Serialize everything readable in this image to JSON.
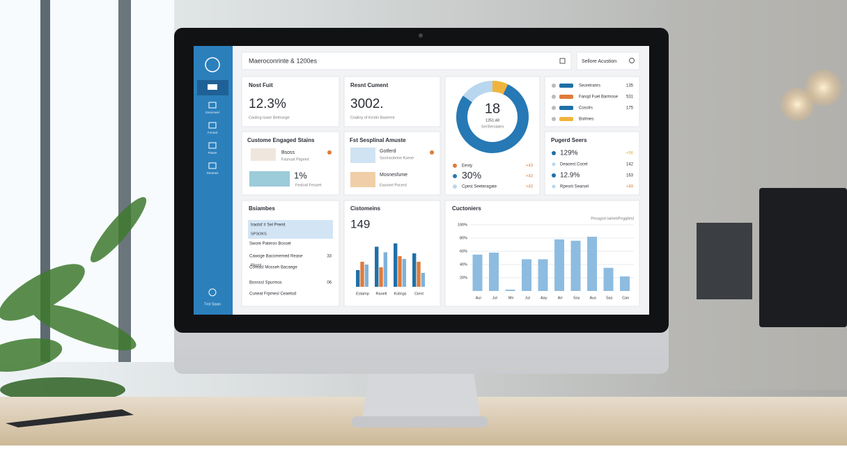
{
  "header": {
    "title": "Maeroconrinte & 1200es",
    "search": "Sellore Acustion"
  },
  "sidebar": {
    "items": [
      "Essorseel",
      "Forsed",
      "Pasee",
      "Seranes"
    ],
    "footer": "Trol Saan"
  },
  "kpi_left": {
    "title": "Nost Fuit",
    "value": "12.3%",
    "caption": "Caoling Isase Bettrooge"
  },
  "kpi_mid": {
    "title": "Resnt Cument",
    "value": "3002.",
    "caption": "Coaliny of Kirstin Bastrent"
  },
  "donut": {
    "center": "18",
    "sub": "1251.48",
    "sub2": "Sel:Bersiates",
    "values": [
      7,
      78,
      15
    ],
    "colors": [
      "#f0b43c",
      "#2679b5",
      "#b8d6ee"
    ],
    "legend": [
      {
        "label": "Eesty",
        "change": "+43",
        "color": "#e07b39"
      },
      {
        "label": "30%",
        "change": "+43",
        "color": "#2679b5"
      },
      {
        "label": "Cpest Seeteragate",
        "change": "+43",
        "color": "#b8d6ee"
      }
    ]
  },
  "legend_card": {
    "rows": [
      {
        "label": "Seorelranrs",
        "value": "135",
        "color": "#1f6fa8"
      },
      {
        "label": "Fanqd Fuel Barmose",
        "value": "531",
        "color": "#e07b39"
      },
      {
        "label": "Cosslrs",
        "value": "175",
        "color": "#1f6fa8"
      },
      {
        "label": "Bsilrnes",
        "color": "#f0b43c"
      }
    ]
  },
  "engaged": {
    "title": "Custome Engaged Stains",
    "items": [
      {
        "name": "Bsoss",
        "caption": "Fasnsat Fbgmnt"
      },
      {
        "name": "1%",
        "caption": "Fesloaf Fesseh"
      }
    ]
  },
  "featured": {
    "title": "Fst Sesplinal Amuste",
    "items": [
      {
        "name": "Gotferd",
        "caption": "Ssomsobrloe Kseoe"
      },
      {
        "name": "Mosnesfume",
        "caption": "Easoset Pocerd"
      }
    ]
  },
  "pugerd": {
    "title": "Pugerd Seers",
    "rows": [
      {
        "label": "129%",
        "change": "+56"
      },
      {
        "label": "Deaoest Cocet",
        "change": "142"
      },
      {
        "label": "12.9%",
        "change": "163"
      },
      {
        "label": "Rpesrit Searsel",
        "change": "+49"
      }
    ]
  },
  "bsiambes": {
    "title": "Bsiambes",
    "rows": [
      {
        "label": "Iraotsf # Sel Prenit",
        "sub": "SPSOKS"
      },
      {
        "label": "Swore Pateron Bosset"
      },
      {
        "label": "Cawoge Bacomemed Rease",
        "value": "33",
        "sub": "Riiorsl"
      },
      {
        "label": "Coreasl Mosseh Bacaege"
      },
      {
        "label": "Bosnssl Spurmos",
        "value": "06"
      },
      {
        "label": "Cuneat Frpmesl Ceaetod"
      }
    ]
  },
  "bars": {
    "type": "bar",
    "title": "Cistomeins",
    "headline": "149",
    "categories": [
      "Estamp",
      "Ranetl",
      "Kstings",
      "Cient"
    ],
    "series": [
      {
        "color": "#1f6fa8",
        "values": [
          30,
          72,
          78,
          60
        ]
      },
      {
        "color": "#e07b39",
        "values": [
          45,
          35,
          55,
          45
        ]
      },
      {
        "color": "#7fb2da",
        "values": [
          40,
          62,
          50,
          25
        ]
      }
    ],
    "ylim": [
      0,
      100
    ]
  },
  "columns": {
    "type": "bar",
    "title": "Cuctoniers",
    "categories": [
      "Aui",
      "Jul",
      "Mn",
      "Jul",
      "Aay",
      "Arr",
      "Soy",
      "Aus",
      "Sas",
      "Can"
    ],
    "series": [
      {
        "name": "Pesagsd Iaimet/Feggitesl",
        "color": "#8dbce0",
        "values": [
          55,
          58,
          2,
          48,
          48,
          78,
          76,
          82,
          35,
          22
        ]
      }
    ],
    "ylim": [
      0,
      100
    ],
    "yticks": [
      {
        "value": 100,
        "label": "100%"
      },
      {
        "value": 80,
        "label": "80%"
      },
      {
        "value": 60,
        "label": "60%"
      },
      {
        "value": 40,
        "label": "40%"
      },
      {
        "value": 20,
        "label": "20%"
      }
    ],
    "grid": true
  }
}
